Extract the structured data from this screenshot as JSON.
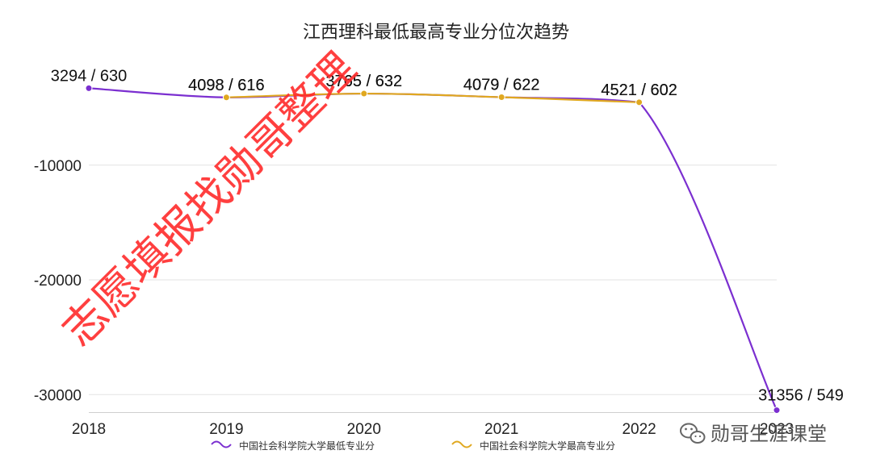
{
  "chart_data": {
    "type": "line",
    "title": "江西理科最低最高专业分位次趋势",
    "categories": [
      "2018",
      "2019",
      "2020",
      "2021",
      "2022",
      "2023"
    ],
    "ylim": [
      -31000,
      0
    ],
    "yticks": [
      {
        "value": -10000,
        "label": "-10000"
      },
      {
        "value": -20000,
        "label": "-20000"
      },
      {
        "value": -30000,
        "label": "-30000"
      }
    ],
    "grid": true,
    "legend_position": "bottom",
    "series": [
      {
        "name": "中国社会科学院大学最低专业分",
        "color": "#7b2fd0",
        "values": [
          -3294,
          -4098,
          -3765,
          -4079,
          -4521,
          -31356
        ],
        "labels": [
          "3294 / 630",
          "4098 / 616",
          "3765 / 632",
          "4079 / 622",
          "4521 / 602",
          "31356 / 549"
        ]
      },
      {
        "name": "中国社会科学院大学最高专业分",
        "color": "#e0a820",
        "values": [
          null,
          -4098,
          -3765,
          -4079,
          -4521,
          null
        ],
        "labels": [
          null,
          "4098 / 616",
          "3765 / 632",
          "4079 / 622",
          "4521 / 602",
          null
        ]
      }
    ]
  },
  "watermark": "志愿填报找勋哥整理",
  "brand": {
    "icon": "wechat-icon",
    "text": "勋哥生涯课堂"
  }
}
